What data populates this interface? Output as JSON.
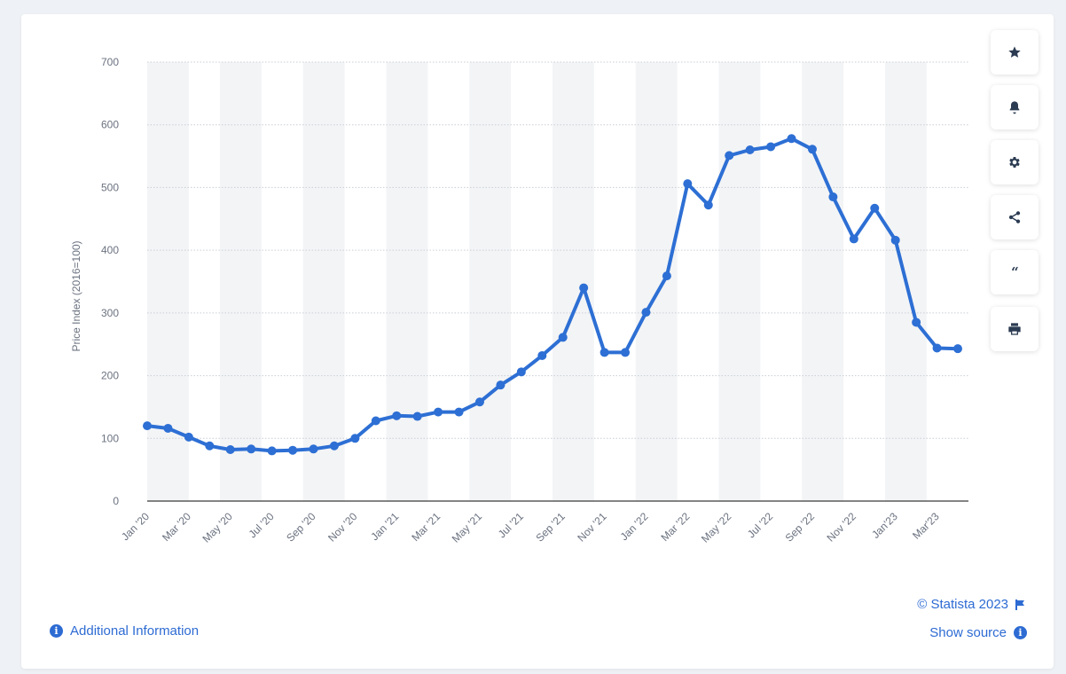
{
  "chart_data": {
    "type": "line",
    "title": "",
    "xlabel": "",
    "ylabel": "Price Index (2016=100)",
    "ylim": [
      0,
      700
    ],
    "yticks": [
      0,
      100,
      200,
      300,
      400,
      500,
      600,
      700
    ],
    "x": [
      "Jan '20",
      "Feb '20",
      "Mar '20",
      "Apr '20",
      "May '20",
      "Jun '20",
      "Jul '20",
      "Aug '20",
      "Sep '20",
      "Oct '20",
      "Nov '20",
      "Dec '20",
      "Jan '21",
      "Feb '21",
      "Mar '21",
      "Apr '21",
      "May '21",
      "Jun '21",
      "Jul '21",
      "Aug '21",
      "Sep '21",
      "Oct '21",
      "Nov '21",
      "Dec '21",
      "Jan '22",
      "Feb '22",
      "Mar '22",
      "Apr '22",
      "May '22",
      "Jun '22",
      "Jul '22",
      "Aug '22",
      "Sep '22",
      "Oct '22",
      "Nov '22",
      "Dec '22",
      "Jan'23",
      "Feb '23",
      "Mar'23",
      "Apr '23"
    ],
    "xtick_labels": [
      "Jan '20",
      "Mar '20",
      "May '20",
      "Jul '20",
      "Sep '20",
      "Nov '20",
      "Jan '21",
      "Mar '21",
      "May '21",
      "Jul '21",
      "Sep '21",
      "Nov '21",
      "Jan '22",
      "Mar '22",
      "May '22",
      "Jul '22",
      "Sep '22",
      "Nov '22",
      "Jan'23",
      "Mar'23"
    ],
    "series": [
      {
        "name": "",
        "color": "#2d6fd4",
        "values": [
          120,
          116,
          102,
          88,
          82,
          83,
          80,
          81,
          83,
          88,
          100,
          128,
          136,
          135,
          142,
          142,
          158,
          185,
          206,
          232,
          261,
          340,
          237,
          237,
          301,
          359,
          506,
          472,
          551,
          560,
          565,
          578,
          561,
          485,
          418,
          467,
          416,
          285,
          244,
          243
        ]
      }
    ],
    "grid": true,
    "legend": "none"
  },
  "toolbar": [
    {
      "icon": "star-icon",
      "name": "favorite-button"
    },
    {
      "icon": "bell-icon",
      "name": "notification-button"
    },
    {
      "icon": "gear-icon",
      "name": "settings-button"
    },
    {
      "icon": "share-icon",
      "name": "share-button"
    },
    {
      "icon": "quote-icon",
      "name": "cite-button"
    },
    {
      "icon": "print-icon",
      "name": "print-button"
    }
  ],
  "footer": {
    "copyright": "© Statista 2023",
    "show_source": "Show source",
    "additional_info": "Additional Information"
  },
  "colors": {
    "accent": "#2d6bd3",
    "line": "#2d6fd4"
  }
}
